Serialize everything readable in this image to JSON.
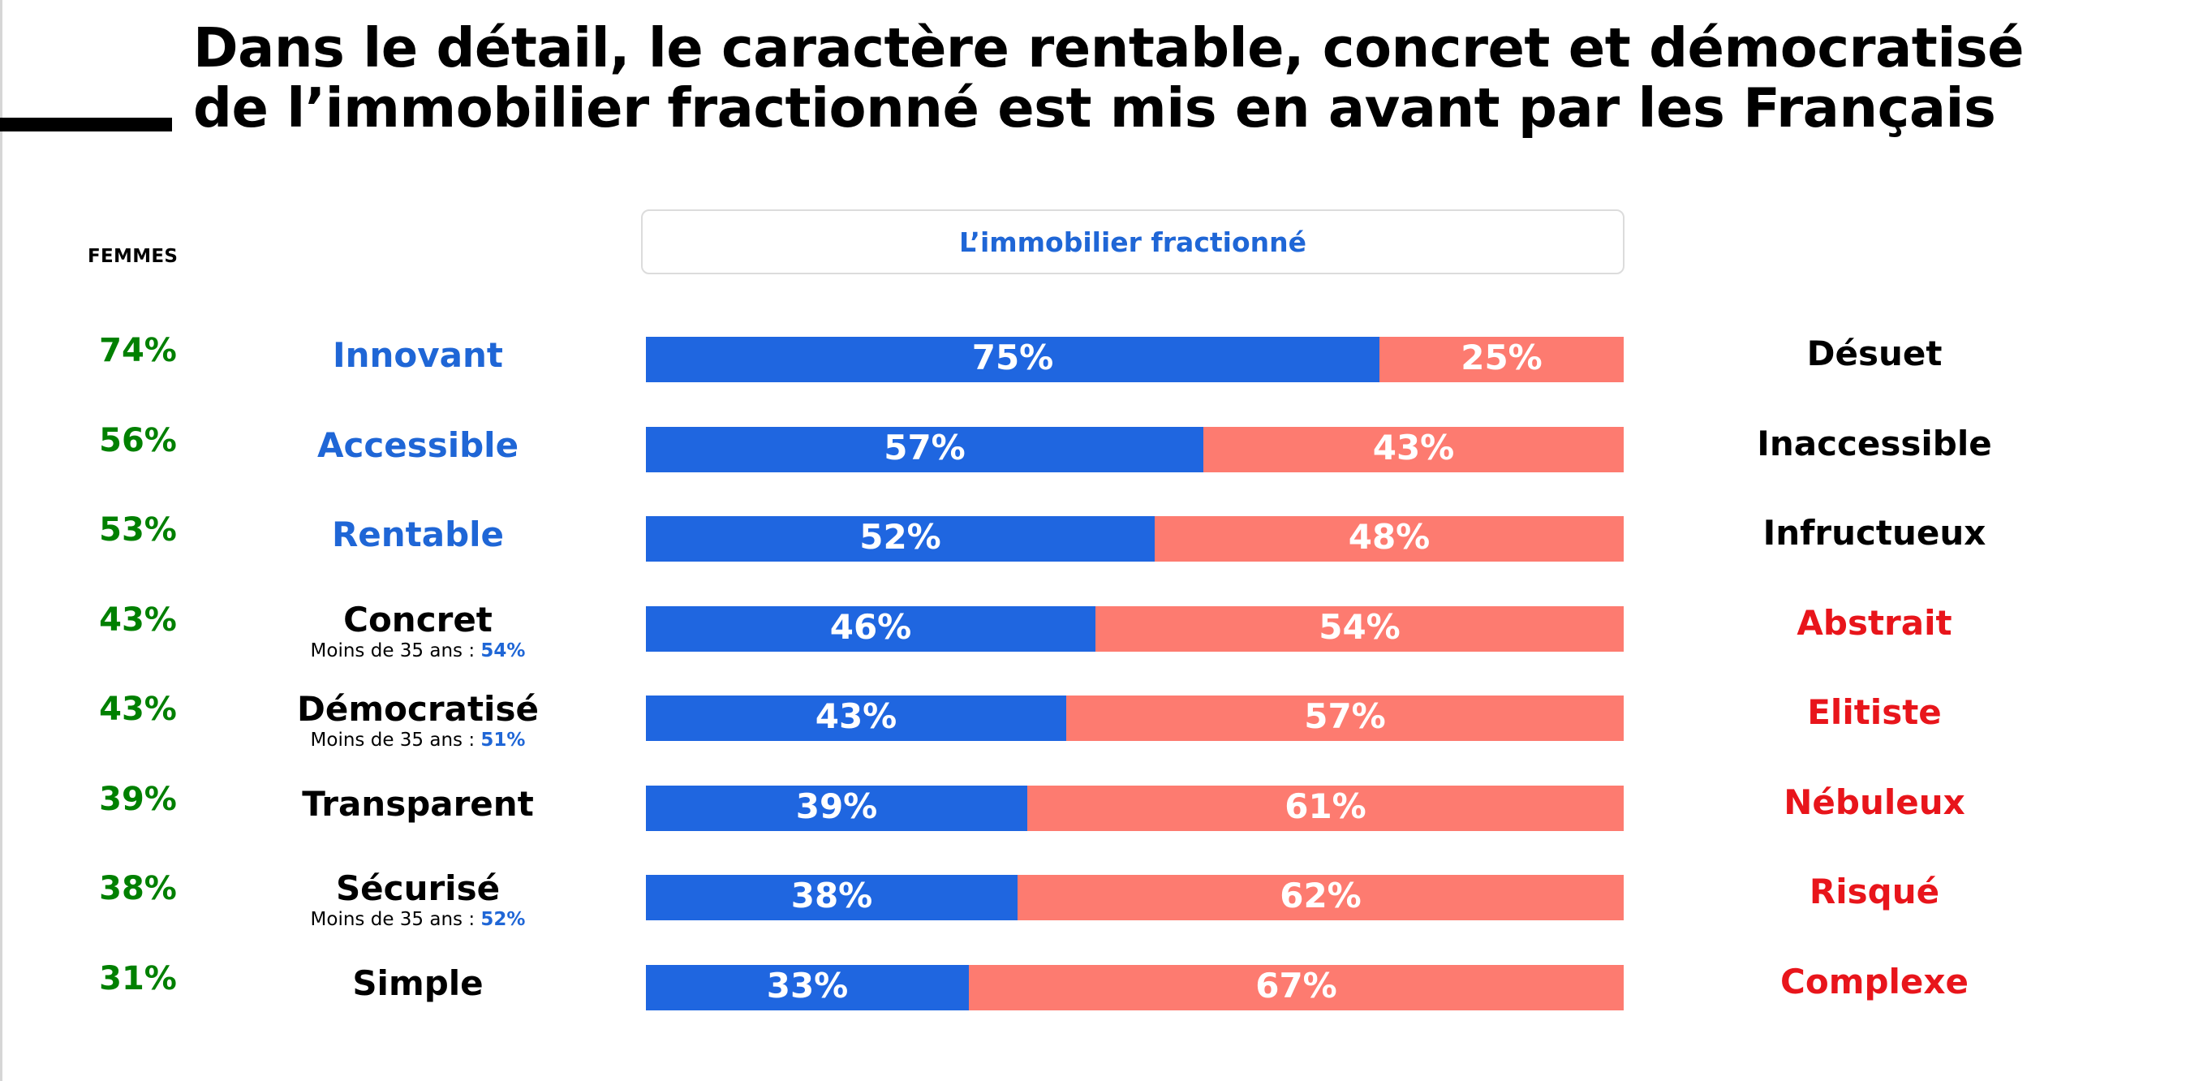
{
  "title_lines": [
    "Dans le détail, le caractère rentable, concret et démocratisé",
    "de l’immobilier fractionné est mis en avant par les Français"
  ],
  "women_header": "FEMMES",
  "chart_header": "L’immobilier fractionné",
  "colors": {
    "positive_bar": "#1f66e0",
    "negative_bar": "#fd7b70",
    "women_pct": "#008000",
    "positive_label_blue": "#1f66d6",
    "negative_label_red": "#e8151b",
    "label_black": "#000000"
  },
  "chart_data": {
    "type": "bar",
    "orientation": "horizontal",
    "stacked": true,
    "title": "L’immobilier fractionné",
    "xlim": [
      0,
      100
    ],
    "unit": "%",
    "rows": [
      {
        "positive": "Innovant",
        "negative": "Désuet",
        "positive_value": 75,
        "negative_value": 25,
        "women": 74,
        "positive_color": "blue",
        "negative_color": "black"
      },
      {
        "positive": "Accessible",
        "negative": "Inaccessible",
        "positive_value": 57,
        "negative_value": 43,
        "women": 56,
        "positive_color": "blue",
        "negative_color": "black"
      },
      {
        "positive": "Rentable",
        "negative": "Infructueux",
        "positive_value": 52,
        "negative_value": 48,
        "women": 53,
        "positive_color": "blue",
        "negative_color": "black"
      },
      {
        "positive": "Concret",
        "negative": "Abstrait",
        "positive_value": 46,
        "negative_value": 54,
        "women": 43,
        "positive_color": "black",
        "negative_color": "red",
        "sub_prefix": "Moins de 35 ans : ",
        "sub_value": "54%"
      },
      {
        "positive": "Démocratisé",
        "negative": "Elitiste",
        "positive_value": 43,
        "negative_value": 57,
        "women": 43,
        "positive_color": "black",
        "negative_color": "red",
        "sub_prefix": "Moins de 35 ans : ",
        "sub_value": "51%"
      },
      {
        "positive": "Transparent",
        "negative": "Nébuleux",
        "positive_value": 39,
        "negative_value": 61,
        "women": 39,
        "positive_color": "black",
        "negative_color": "red"
      },
      {
        "positive": "Sécurisé",
        "negative": "Risqué",
        "positive_value": 38,
        "negative_value": 62,
        "women": 38,
        "positive_color": "black",
        "negative_color": "red",
        "sub_prefix": "Moins de 35 ans : ",
        "sub_value": "52%"
      },
      {
        "positive": "Simple",
        "negative": "Complexe",
        "positive_value": 33,
        "negative_value": 67,
        "women": 31,
        "positive_color": "black",
        "negative_color": "red"
      }
    ]
  }
}
